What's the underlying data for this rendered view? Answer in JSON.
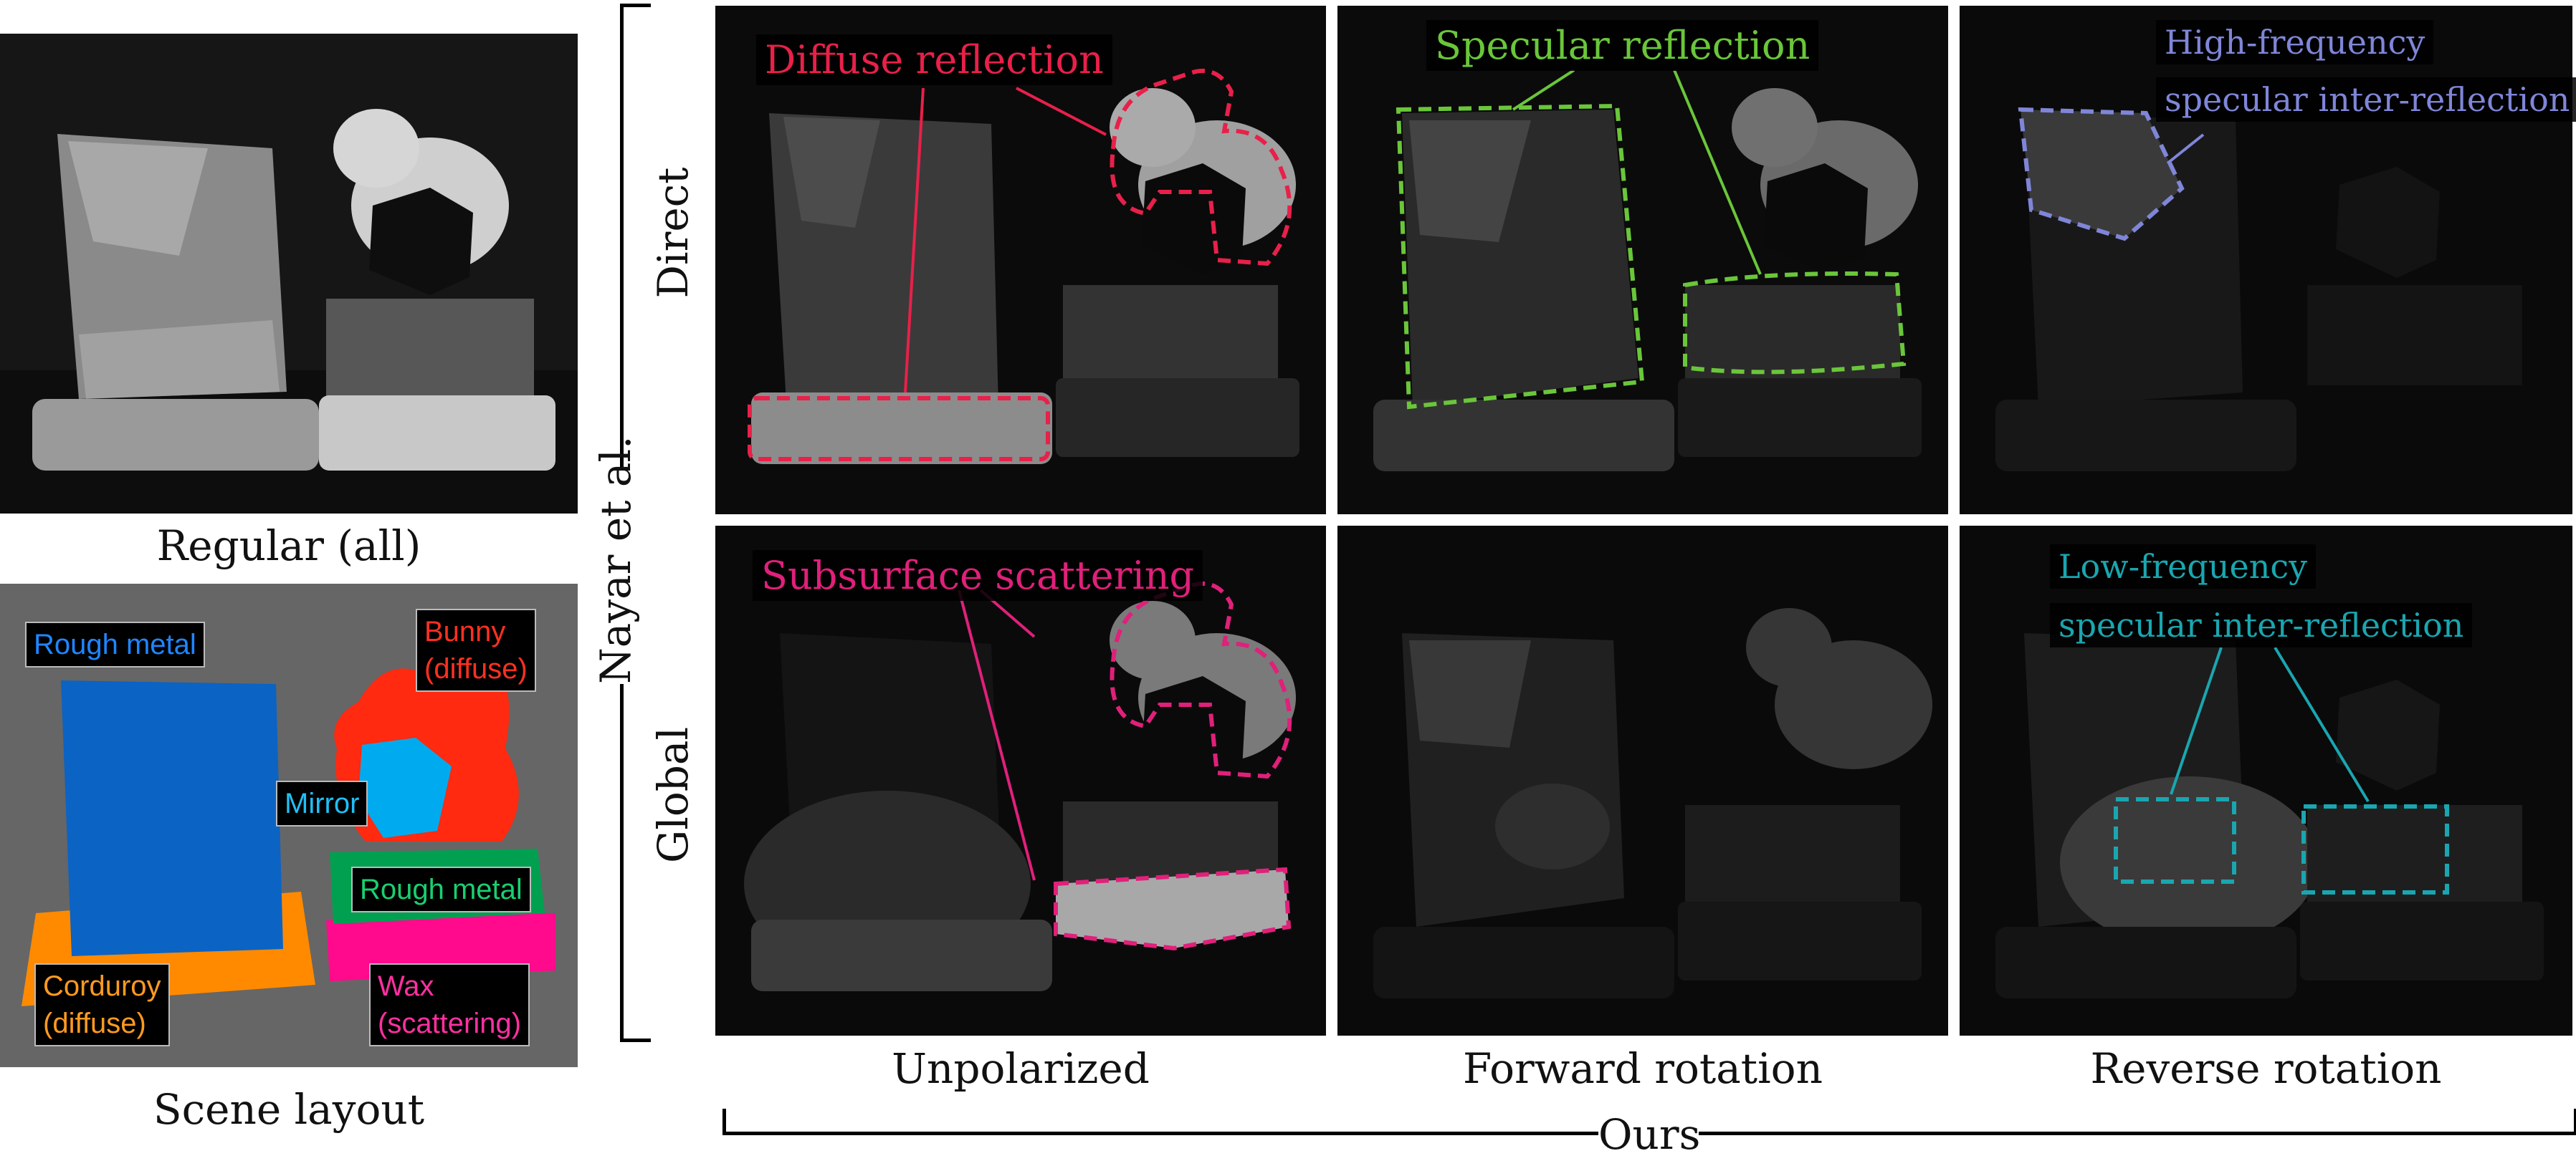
{
  "left": {
    "regular_caption": "Regular (all)",
    "layout_caption": "Scene layout",
    "legend": {
      "rough_metal_top": "Rough metal",
      "bunny": "Bunny\n(diffuse)",
      "mirror": "Mirror",
      "rough_metal_mid": "Rough metal",
      "corduroy": "Corduroy\n(diffuse)",
      "wax": "Wax\n(scattering)"
    },
    "colors": {
      "background": "#666666",
      "rough_metal_top": "#0b63c4",
      "bunny": "#ff2a10",
      "mirror": "#00aaee",
      "rough_metal_mid": "#00a050",
      "corduroy": "#ff8a00",
      "wax": "#ff0a8c"
    }
  },
  "group_labels": {
    "nayar": "Nayar et al.",
    "direct": "Direct",
    "global": "Global",
    "ours": "Ours"
  },
  "columns": {
    "unpolarized": "Unpolarized",
    "forward": "Forward rotation",
    "reverse": "Reverse rotation"
  },
  "annotations": {
    "diffuse_reflection": "Diffuse reflection",
    "specular_reflection": "Specular reflection",
    "hf_line1": "High-frequency",
    "hf_line2": "specular inter-reflection",
    "subsurface": "Subsurface scattering",
    "lf_line1": "Low-frequency",
    "lf_line2": "specular inter-reflection"
  },
  "annotation_colors": {
    "diffuse": "#e8204a",
    "specular": "#6ac63a",
    "high_freq": "#7f86d8",
    "subsurface": "#e0207a",
    "low_freq": "#1aa6b0"
  }
}
